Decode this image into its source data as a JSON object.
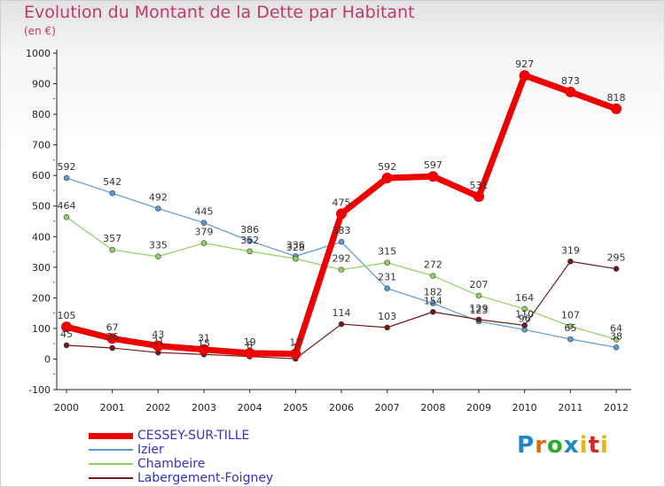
{
  "title": "Evolution du Montant de la Dette par Habitant",
  "subtitle": "(en €)",
  "logo_text": "Proxiti",
  "chart_data": {
    "type": "line",
    "title": "Evolution du Montant de la Dette par Habitant",
    "subtitle": "(en €)",
    "categories": [
      "2000",
      "2001",
      "2002",
      "2003",
      "2004",
      "2005",
      "2006",
      "2007",
      "2008",
      "2009",
      "2010",
      "2011",
      "2012"
    ],
    "ylim": [
      -100,
      1000
    ],
    "yticks": [
      -100,
      0,
      100,
      200,
      300,
      400,
      500,
      600,
      700,
      800,
      900,
      1000
    ],
    "legend_position": "bottom-left",
    "grid": false,
    "series": [
      {
        "name": "CESSEY-SUR-TILLE",
        "color": "#ee0000",
        "values": [
          105,
          67,
          43,
          31,
          19,
          17,
          475,
          592,
          597,
          531,
          927,
          873,
          818
        ]
      },
      {
        "name": "Izier",
        "color": "#5a9ad0",
        "values": [
          592,
          542,
          492,
          445,
          386,
          336,
          383,
          231,
          182,
          123,
          96,
          65,
          38
        ]
      },
      {
        "name": "Chambeire",
        "color": "#90d060",
        "values": [
          464,
          357,
          335,
          379,
          352,
          328,
          292,
          315,
          272,
          207,
          164,
          107,
          64
        ]
      },
      {
        "name": "Labergement-Foigney",
        "color": "#6e1a1a",
        "values": [
          45,
          36,
          21,
          15,
          8,
          1,
          114,
          103,
          154,
          129,
          110,
          319,
          295
        ]
      }
    ]
  }
}
